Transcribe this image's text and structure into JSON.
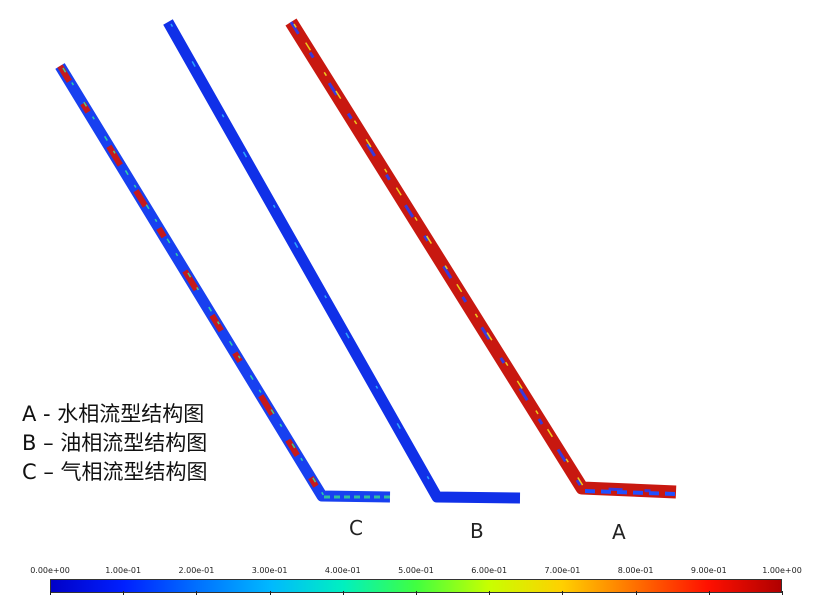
{
  "legend": {
    "line_a": "A - 水相流型结构图",
    "line_b": "B – 油相流型结构图",
    "line_c": "C – 气相流型结构图"
  },
  "pipes": [
    {
      "id": "A",
      "label": "A",
      "dominant": "red"
    },
    {
      "id": "B",
      "label": "B",
      "dominant": "blue"
    },
    {
      "id": "C",
      "label": "C",
      "dominant": "mixed"
    }
  ],
  "colorbar": {
    "ticks": [
      "0.00e+00",
      "1.00e-01",
      "2.00e-01",
      "3.00e-01",
      "4.00e-01",
      "5.00e-01",
      "6.00e-01",
      "7.00e-01",
      "8.00e-01",
      "9.00e-01",
      "1.00e+00"
    ],
    "min": 0,
    "max": 1,
    "colors": [
      "#0000c8",
      "#0020ff",
      "#0070ff",
      "#00b8ff",
      "#00f0c0",
      "#40ff40",
      "#c8ff00",
      "#ffd000",
      "#ff7000",
      "#ff1000",
      "#b00000"
    ]
  }
}
